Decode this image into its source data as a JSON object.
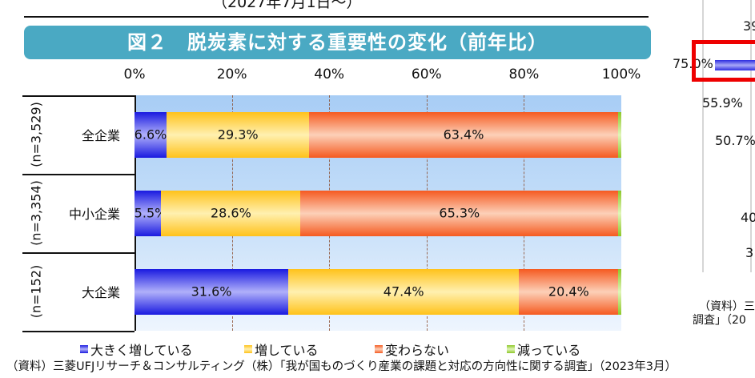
{
  "header_partial": "（2027年7月1日〜）",
  "banner_title": "図２　脱炭素に対する重要性の変化（前年比）",
  "chart_data": {
    "type": "bar",
    "orientation": "horizontal",
    "stacked": true,
    "title": "図２　脱炭素に対する重要性の変化（前年比）",
    "categories": [
      "全企業",
      "中小企業",
      "大企業"
    ],
    "sample_sizes": [
      "(n=3,529)",
      "(n=3,354)",
      "(n=152)"
    ],
    "x_ticks": [
      "0%",
      "20%",
      "40%",
      "60%",
      "80%",
      "100%"
    ],
    "xlim": [
      0,
      100
    ],
    "grid": true,
    "legend_position": "bottom",
    "series": [
      {
        "name": "大きく増している",
        "color": "#3a3ae0",
        "values": [
          6.6,
          5.5,
          31.6
        ],
        "labels": [
          "6.6%",
          "5.5%",
          "31.6%"
        ]
      },
      {
        "name": "増している",
        "color": "#ffd23a",
        "values": [
          29.3,
          28.6,
          47.4
        ],
        "labels": [
          "29.3%",
          "28.6%",
          "47.4%"
        ]
      },
      {
        "name": "変わらない",
        "color": "#f5703a",
        "values": [
          63.4,
          65.3,
          20.4
        ],
        "labels": [
          "63.4%",
          "65.3%",
          "20.4%"
        ]
      },
      {
        "name": "減っている",
        "color": "#9acd3a",
        "values": [
          0.7,
          0.6,
          0.6
        ],
        "labels": [
          "",
          "",
          ""
        ]
      }
    ]
  },
  "source": "（資料）三菱UFJリサーチ＆コンサルティング（株）「我が国ものづくり産業の課題と対応の方向性に関する調査」（2023年3月）",
  "right_partial": {
    "v1": "39",
    "v2": "75.0%",
    "v3": "55.9%",
    "v4": "50.7%",
    "v5": "40",
    "v6": "3",
    "source1": "（資料）三",
    "source2": "調査」（20",
    "highlight_color": "#ee0000"
  }
}
